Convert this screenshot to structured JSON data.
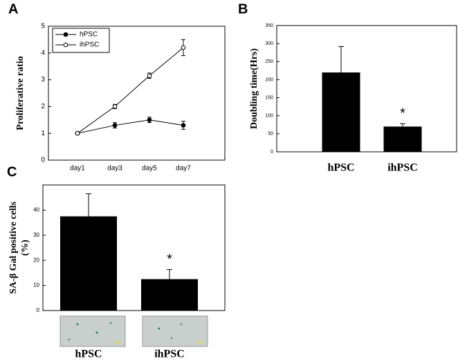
{
  "chart_data": [
    {
      "panel": "A",
      "type": "line",
      "ylabel": [
        "Proliferative ratio"
      ],
      "categories": [
        "day1",
        "day3",
        "day5",
        "day7"
      ],
      "series": [
        {
          "name": "hPSC",
          "color": "#000000",
          "marker_fill": "#000000",
          "values": [
            1.0,
            1.3,
            1.5,
            1.3
          ],
          "errors": [
            0.05,
            0.1,
            0.1,
            0.15
          ]
        },
        {
          "name": "ihPSC",
          "color": "#000000",
          "marker_fill": "#ffffff",
          "values": [
            1.0,
            2.0,
            3.15,
            4.2
          ],
          "errors": [
            0.03,
            0.08,
            0.1,
            0.3
          ]
        }
      ],
      "ylim": [
        0,
        5
      ],
      "yticks": [
        0,
        1,
        2,
        3,
        4,
        5
      ],
      "legend": "upper-left"
    },
    {
      "panel": "B",
      "type": "bar",
      "ylabel": [
        "Doubling time(Hrs)"
      ],
      "categories": [
        "hPSC",
        "ihPSC"
      ],
      "values": [
        220,
        70
      ],
      "errors": [
        72,
        8
      ],
      "color": "#000000",
      "annotation": "*",
      "ylim": [
        0,
        350
      ],
      "yticks": [
        0,
        50,
        100,
        150,
        200,
        250,
        300,
        350
      ]
    },
    {
      "panel": "C",
      "type": "bar",
      "ylabel": [
        "SA-β Gal positive cells",
        "(%)"
      ],
      "categories": [
        "hPSC",
        "ihPSC"
      ],
      "values": [
        37.5,
        12.5
      ],
      "errors": [
        9,
        3.8
      ],
      "color": "#000000",
      "annotation": "*",
      "ylim": [
        0,
        50
      ],
      "yticks": [
        0,
        10,
        20,
        30,
        40
      ]
    }
  ]
}
